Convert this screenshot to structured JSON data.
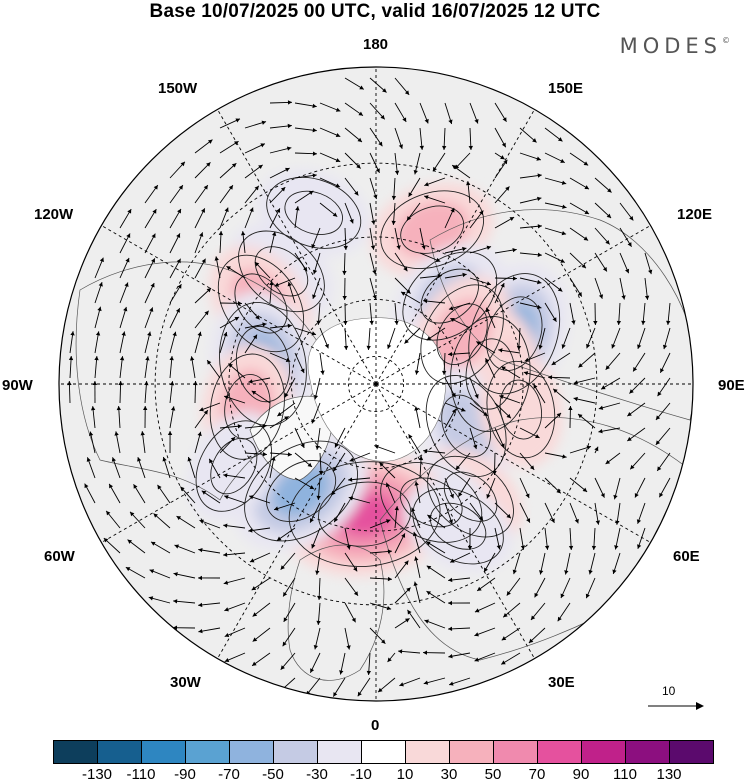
{
  "title": "Base 10/07/2025 00 UTC, valid 16/07/2025 12 UTC",
  "brand": "MODES",
  "brand_mark": "©",
  "longitude_labels": {
    "lon_180": "180",
    "lon_150W": "150W",
    "lon_150E": "150E",
    "lon_120W": "120W",
    "lon_120E": "120E",
    "lon_90W": "90W",
    "lon_90E": "90E",
    "lon_60W": "60W",
    "lon_60E": "60E",
    "lon_30W": "30W",
    "lon_30E": "30E",
    "lon_0": "0"
  },
  "vector_reference": "10",
  "colorbar": {
    "colors": [
      "#0d3e5c",
      "#165f8f",
      "#2e86c1",
      "#5aa2d2",
      "#8fb3de",
      "#c5cbe4",
      "#e8e6f2",
      "#ffffff",
      "#f9d9d9",
      "#f6b1bc",
      "#f08aae",
      "#e5519e",
      "#c0218a",
      "#8c0f7f",
      "#5b0a6d"
    ],
    "tick_labels": [
      "-130",
      "-110",
      "-90",
      "-70",
      "-50",
      "-30",
      "-10",
      "10",
      "30",
      "50",
      "70",
      "90",
      "110",
      "130"
    ]
  },
  "anomaly_centers": [
    {
      "lon": -140,
      "lat": 40,
      "level": -20
    },
    {
      "lon": 160,
      "lat": 35,
      "level": 30
    },
    {
      "lon": -125,
      "lat": 42,
      "level": 30
    },
    {
      "lon": -100,
      "lat": 50,
      "level": -50
    },
    {
      "lon": -80,
      "lat": 45,
      "level": 30
    },
    {
      "lon": -160,
      "lat": 30,
      "level": -20
    },
    {
      "lon": 140,
      "lat": 50,
      "level": -30
    },
    {
      "lon": 110,
      "lat": 40,
      "level": -50
    },
    {
      "lon": 95,
      "lat": 50,
      "level": 40
    },
    {
      "lon": 120,
      "lat": 55,
      "level": 30
    },
    {
      "lon": 65,
      "lat": 55,
      "level": -30
    },
    {
      "lon": 40,
      "lat": 40,
      "level": 20
    },
    {
      "lon": 25,
      "lat": 45,
      "level": -30
    },
    {
      "lon": -5,
      "lat": 45,
      "level": 80
    },
    {
      "lon": -35,
      "lat": 45,
      "level": -50
    },
    {
      "lon": -60,
      "lat": 35,
      "level": -20
    },
    {
      "lon": 30,
      "lat": 35,
      "level": -20
    },
    {
      "lon": 80,
      "lat": 40,
      "level": 20
    }
  ]
}
